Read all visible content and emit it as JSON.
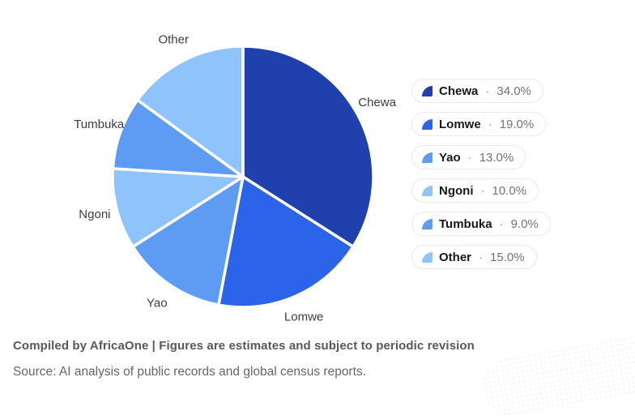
{
  "chart_data": {
    "type": "pie",
    "categories": [
      "Chewa",
      "Lomwe",
      "Yao",
      "Ngoni",
      "Tumbuka",
      "Other"
    ],
    "values": [
      34.0,
      19.0,
      13.0,
      10.0,
      9.0,
      15.0
    ],
    "unit": "%",
    "colors": [
      "#2041ad",
      "#2c64e9",
      "#5e9cf4",
      "#8ec4fb",
      "#5e9cf4",
      "#8ec4fb"
    ],
    "start_angle": "12 o'clock, clockwise",
    "slice_label_position": "outside",
    "slice_gap_color": "#ffffff",
    "legend_position": "right",
    "title": ""
  },
  "legend": {
    "separator": "·",
    "items": [
      {
        "label": "Chewa",
        "value": "34.0%",
        "color": "#2041ad"
      },
      {
        "label": "Lomwe",
        "value": "19.0%",
        "color": "#2c64e9"
      },
      {
        "label": "Yao",
        "value": "13.0%",
        "color": "#5e9cf4"
      },
      {
        "label": "Ngoni",
        "value": "10.0%",
        "color": "#8ec4fb"
      },
      {
        "label": "Tumbuka",
        "value": "9.0%",
        "color": "#5e9cf4"
      },
      {
        "label": "Other",
        "value": "15.0%",
        "color": "#8ec4fb"
      }
    ]
  },
  "footer": {
    "compiled": "Compiled by AfricaOne | Figures are estimates and subject to periodic revision",
    "source": "Source: AI analysis of public records and global census reports."
  }
}
